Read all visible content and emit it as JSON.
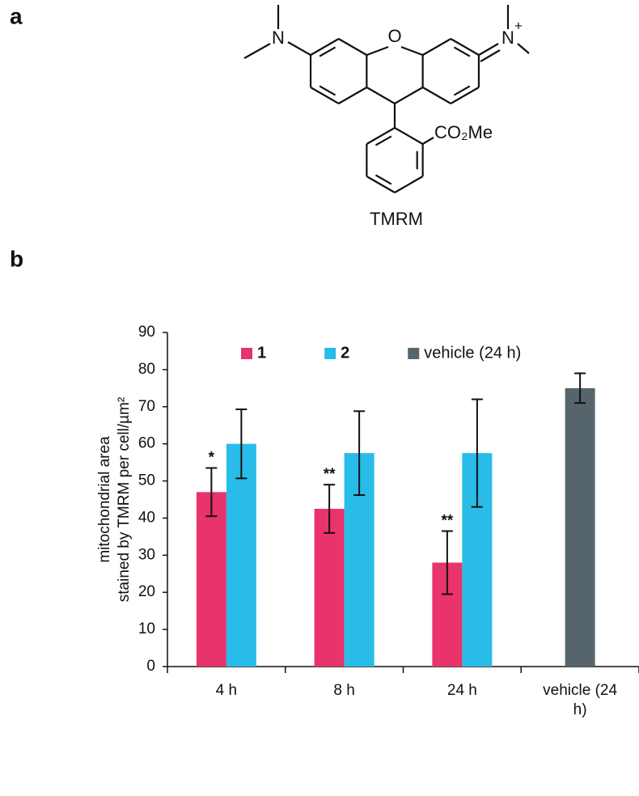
{
  "panels": [
    "a",
    "b"
  ],
  "structure": {
    "name": "TMRM",
    "atoms": {
      "n_left": "N",
      "oxygen": "O",
      "n_right": "N",
      "charge": "+",
      "ester": "CO₂Me"
    }
  },
  "chart_data": {
    "type": "bar",
    "y_label": [
      "mitochondrial area",
      "stained by TMRM per cell/µm²"
    ],
    "categories": [
      "4 h",
      "8 h",
      "24 h",
      "vehicle (24 h)"
    ],
    "series": [
      {
        "name": "1",
        "color": "#e8336b",
        "values": [
          47,
          42.5,
          28,
          null
        ],
        "errors": [
          6.5,
          6.5,
          8.5,
          null
        ],
        "significance": [
          "*",
          "**",
          "**",
          null
        ]
      },
      {
        "name": "2",
        "color": "#29bce8",
        "values": [
          60,
          57.5,
          57.5,
          null
        ],
        "errors": [
          9.3,
          11.3,
          14.5,
          null
        ]
      },
      {
        "name": "vehicle (24 h)",
        "color": "#56656b",
        "values": [
          null,
          null,
          null,
          75
        ],
        "errors": [
          null,
          null,
          null,
          4
        ]
      }
    ],
    "ylim": [
      0,
      90
    ],
    "yticks": [
      0,
      10,
      20,
      30,
      40,
      50,
      60,
      70,
      80,
      90
    ],
    "legend": "top",
    "grid": false
  }
}
